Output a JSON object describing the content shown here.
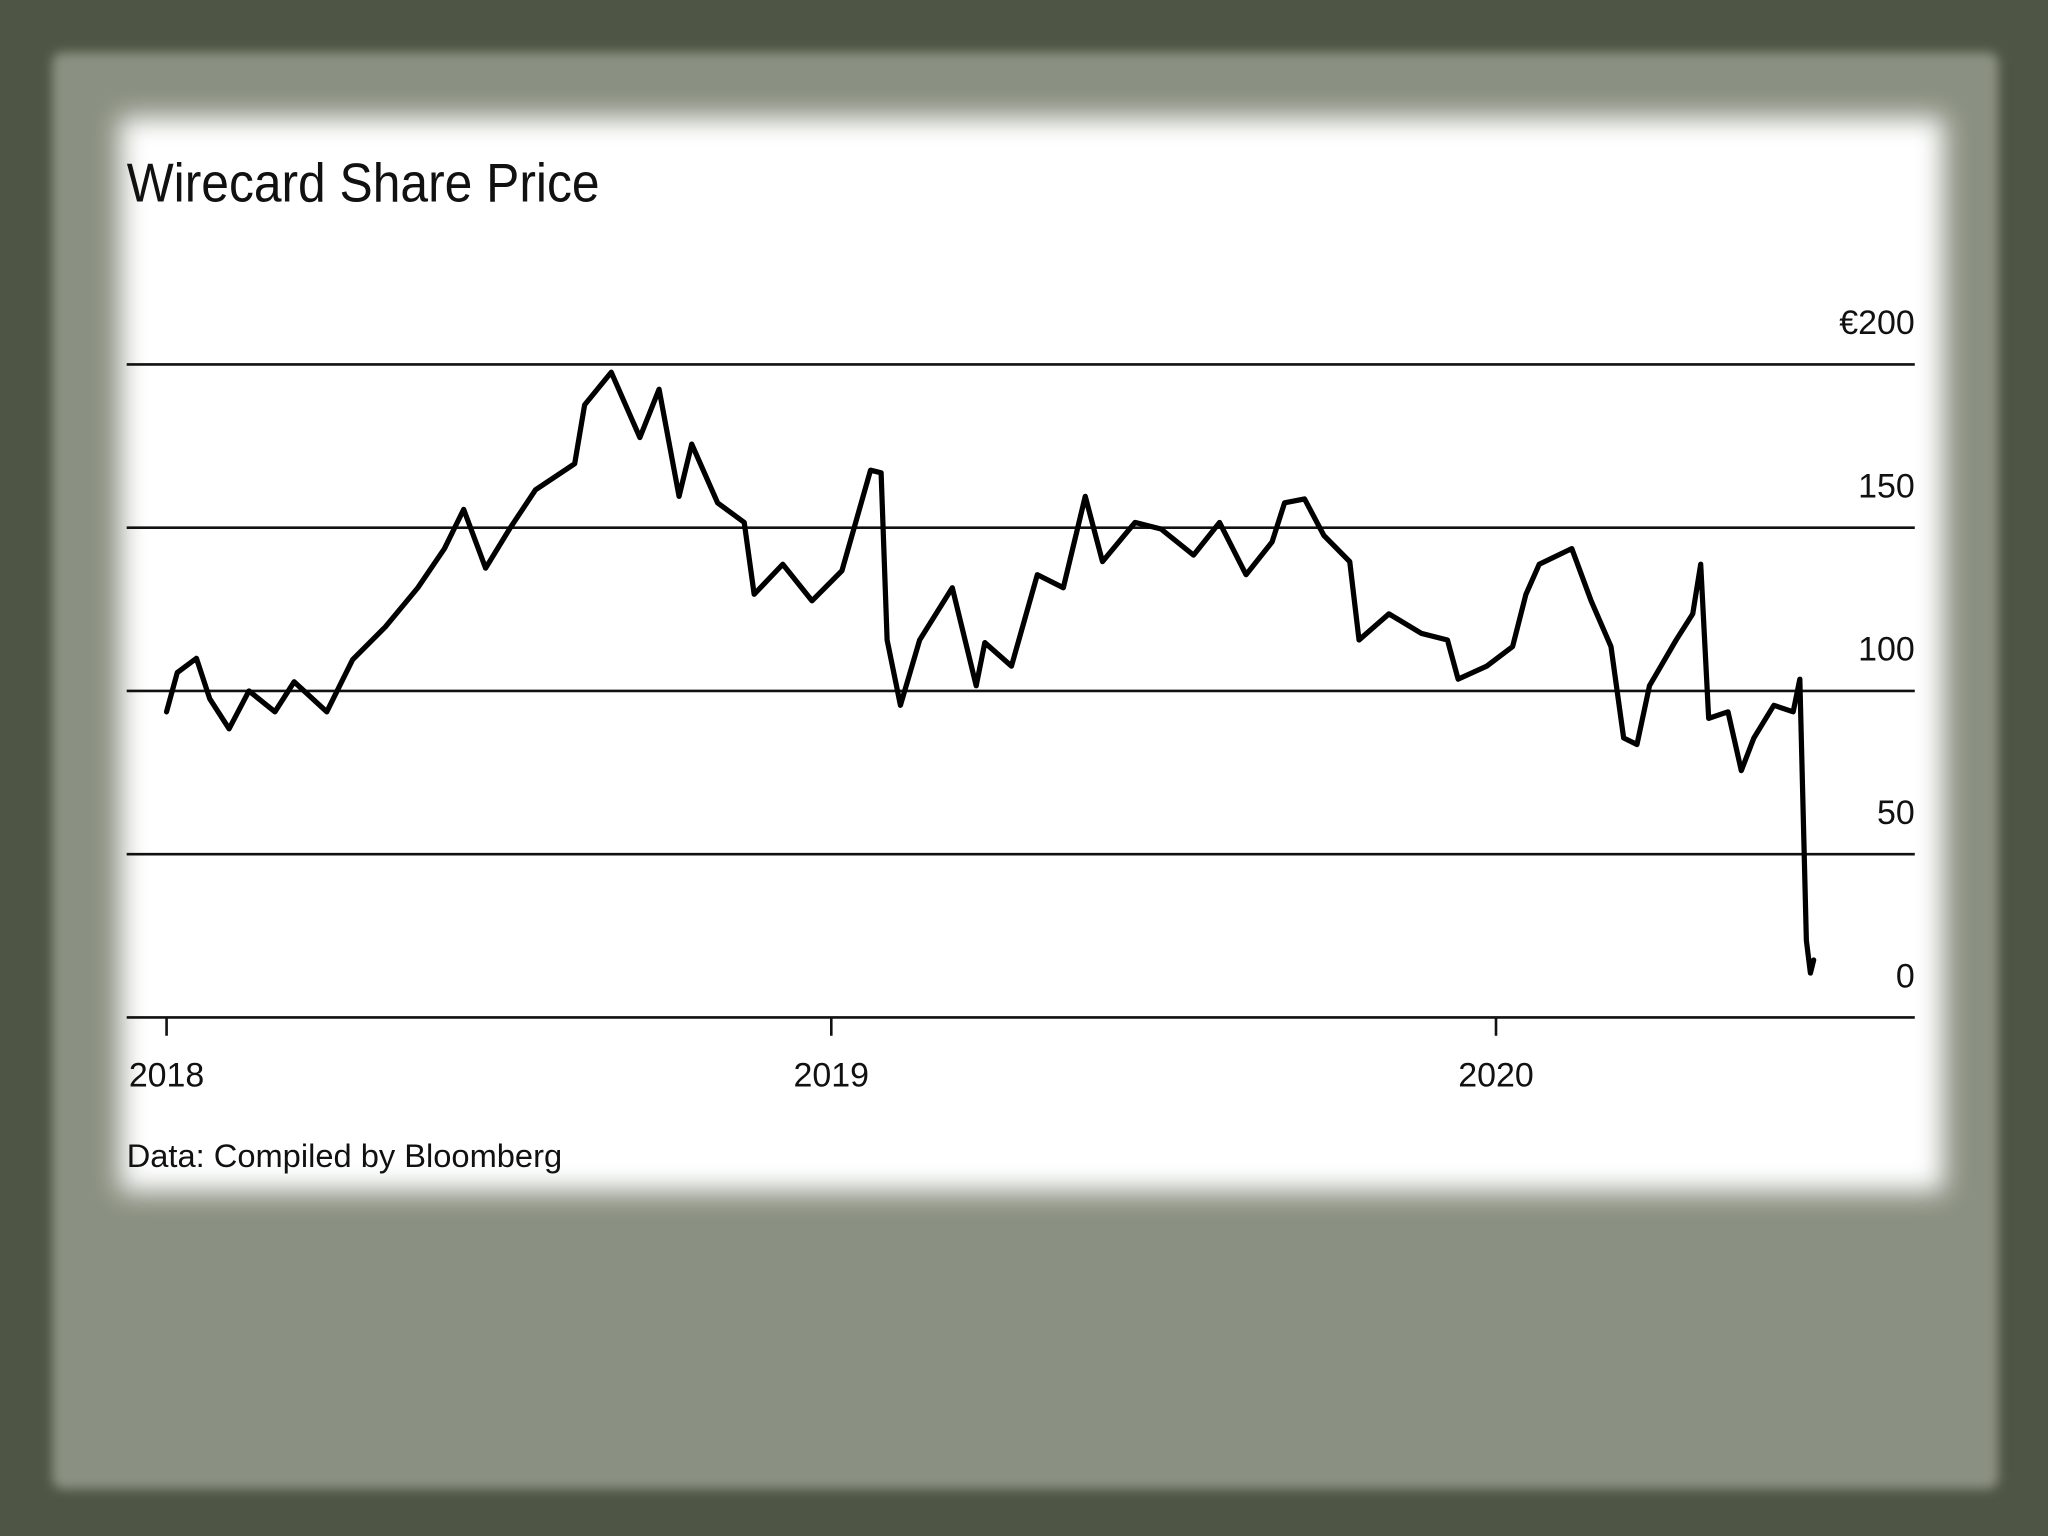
{
  "chart_data": {
    "type": "line",
    "title": "Wirecard Share Price",
    "source": "Data: Compiled by Bloomberg",
    "xlim": [
      2017.94,
      2020.63
    ],
    "xticks": [
      2018,
      2019,
      2020
    ],
    "ylim": [
      0,
      200
    ],
    "yticks": [
      0,
      50,
      100,
      150,
      {
        "value": 200,
        "label": "€200"
      }
    ],
    "grid": true,
    "series": [
      {
        "color": "#000000",
        "x": [
          2018.0,
          2018.016,
          2018.045,
          2018.065,
          2018.094,
          2018.124,
          2018.163,
          2018.192,
          2018.241,
          2018.28,
          2018.329,
          2018.378,
          2018.418,
          2018.447,
          2018.48,
          2018.516,
          2018.555,
          2018.614,
          2018.629,
          2018.669,
          2018.712,
          2018.741,
          2018.771,
          2018.79,
          2018.829,
          2018.869,
          2018.884,
          2018.927,
          2018.971,
          2019.016,
          2019.059,
          2019.075,
          2019.084,
          2019.104,
          2019.133,
          2019.182,
          2019.218,
          2019.231,
          2019.271,
          2019.31,
          2019.349,
          2019.382,
          2019.408,
          2019.457,
          2019.496,
          2019.545,
          2019.584,
          2019.624,
          2019.663,
          2019.682,
          2019.712,
          2019.741,
          2019.78,
          2019.794,
          2019.839,
          2019.888,
          2019.927,
          2019.943,
          2019.986,
          2020.025,
          2020.045,
          2020.065,
          2020.114,
          2020.143,
          2020.173,
          2020.192,
          2020.212,
          2020.231,
          2020.271,
          2020.296,
          2020.308,
          2020.32,
          2020.349,
          2020.369,
          2020.388,
          2020.418,
          2020.447,
          2020.457,
          2020.463,
          2020.467,
          2020.473,
          2020.478
        ],
        "values": [
          93.6,
          105.6,
          110,
          97.6,
          88.4,
          100,
          93.6,
          102.8,
          93.6,
          109.6,
          119.6,
          131.6,
          143.6,
          155.6,
          137.6,
          149.6,
          161.6,
          169.6,
          187.6,
          197.6,
          177.6,
          192.4,
          159.6,
          175.6,
          157.6,
          151.6,
          129.6,
          138.8,
          127.6,
          136.8,
          167.6,
          166.8,
          115.6,
          95.6,
          115.6,
          131.6,
          101.6,
          114.8,
          107.6,
          135.6,
          131.6,
          159.6,
          139.6,
          151.6,
          149.6,
          141.6,
          151.6,
          135.6,
          145.6,
          157.6,
          158.8,
          147.6,
          139.6,
          115.6,
          123.6,
          117.6,
          115.6,
          103.6,
          107.6,
          113.6,
          129.6,
          138.8,
          143.6,
          127.6,
          113.6,
          85.6,
          83.6,
          101.6,
          115.6,
          123.6,
          138.8,
          91.6,
          93.6,
          75.6,
          85.6,
          95.6,
          93.6,
          103.6,
          55.6,
          23.6,
          13.6,
          17.6
        ]
      }
    ]
  }
}
